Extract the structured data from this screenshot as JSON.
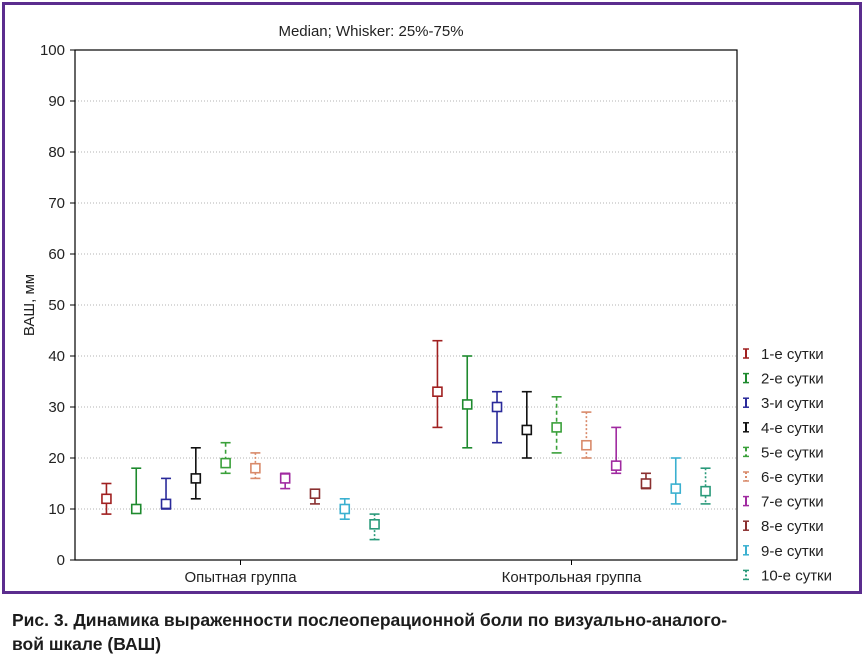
{
  "chart_data": {
    "type": "error-bar",
    "title": "Median; Whisker: 25%-75%",
    "ylabel": "ВАШ, мм",
    "ylim": [
      0,
      100
    ],
    "yticks": [
      0,
      10,
      20,
      30,
      40,
      50,
      60,
      70,
      80,
      90,
      100
    ],
    "grid": true,
    "legend_position": "right",
    "categories": [
      "Опытная группа",
      "Контрольная группа"
    ],
    "series": [
      {
        "name": "1-е сутки",
        "color": "#a02020",
        "dash": "solid",
        "points": [
          {
            "median": 12,
            "q25": 9,
            "q75": 15
          },
          {
            "median": 33,
            "q25": 26,
            "q75": 43
          }
        ]
      },
      {
        "name": "2-е сутки",
        "color": "#1e8a2e",
        "dash": "solid",
        "points": [
          {
            "median": 10,
            "q25": 9.5,
            "q75": 18
          },
          {
            "median": 30.5,
            "q25": 22,
            "q75": 40
          }
        ]
      },
      {
        "name": "3-и сутки",
        "color": "#2a2a9a",
        "dash": "solid",
        "points": [
          {
            "median": 11,
            "q25": 10,
            "q75": 16
          },
          {
            "median": 30,
            "q25": 23,
            "q75": 33
          }
        ]
      },
      {
        "name": "4-е сутки",
        "color": "#111111",
        "dash": "solid",
        "points": [
          {
            "median": 16,
            "q25": 12,
            "q75": 22
          },
          {
            "median": 25.5,
            "q25": 20,
            "q75": 33
          }
        ]
      },
      {
        "name": "5-е сутки",
        "color": "#3aa03a",
        "dash": "dashed",
        "points": [
          {
            "median": 19,
            "q25": 17,
            "q75": 23
          },
          {
            "median": 26,
            "q25": 21,
            "q75": 32
          }
        ]
      },
      {
        "name": "6-е сутки",
        "color": "#d98a6a",
        "dash": "dotted",
        "points": [
          {
            "median": 18,
            "q25": 16,
            "q75": 21
          },
          {
            "median": 22.5,
            "q25": 20,
            "q75": 29
          }
        ]
      },
      {
        "name": "7-е сутки",
        "color": "#a02aa0",
        "dash": "solid",
        "points": [
          {
            "median": 16,
            "q25": 14,
            "q75": 17
          },
          {
            "median": 18.5,
            "q25": 17,
            "q75": 26
          }
        ]
      },
      {
        "name": "8-е сутки",
        "color": "#8a3030",
        "dash": "solid",
        "points": [
          {
            "median": 13,
            "q25": 11,
            "q75": 13
          },
          {
            "median": 15,
            "q25": 14,
            "q75": 17
          }
        ]
      },
      {
        "name": "9-е сутки",
        "color": "#3ab0d0",
        "dash": "solid",
        "points": [
          {
            "median": 10,
            "q25": 8,
            "q75": 12
          },
          {
            "median": 14,
            "q25": 11,
            "q75": 20
          }
        ]
      },
      {
        "name": "10-е сутки",
        "color": "#2a9a7a",
        "dash": "dotted",
        "points": [
          {
            "median": 7,
            "q25": 4,
            "q75": 9
          },
          {
            "median": 13.5,
            "q25": 11,
            "q75": 18
          }
        ]
      }
    ]
  },
  "caption": {
    "line1": "Рис. 3. Динамика выраженности послеоперационной боли по визуально-аналого-",
    "line2": "вой шкале (ВАШ)"
  }
}
